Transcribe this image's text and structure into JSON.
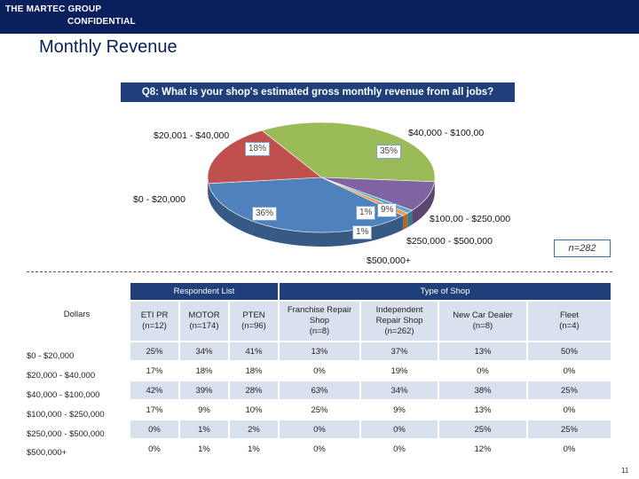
{
  "header": {
    "company": "THE MARTEC GROUP",
    "confidential": "CONFIDENTIAL"
  },
  "page_title": "Monthly Revenue",
  "question": "Q8: What is your shop's estimated gross monthly revenue from all jobs?",
  "sample_note": "n=282",
  "page_number": "11",
  "colors": {
    "header_bg": "#0b1f5c",
    "band_bg": "#1f3f7a",
    "light_row": "#d9e1ef",
    "slice_blue": "#4f81bd",
    "slice_red": "#c0504d",
    "slice_green": "#9bbb59",
    "slice_purple": "#8064a2",
    "slice_teal": "#4bacc6",
    "slice_orange": "#f79646"
  },
  "chart_data": {
    "type": "pie",
    "title": "Q8: What is your shop's estimated gross monthly revenue from all jobs?",
    "slices": [
      {
        "label": "$0 - $20,000",
        "value": 36,
        "pct_label": "36%",
        "color": "#4f81bd"
      },
      {
        "label": "$20,001 - $40,000",
        "value": 18,
        "pct_label": "18%",
        "color": "#c0504d"
      },
      {
        "label": "$40,000 - $100,00",
        "value": 35,
        "pct_label": "35%",
        "color": "#9bbb59"
      },
      {
        "label": "$100,00 - $250,000",
        "value": 9,
        "pct_label": "9%",
        "color": "#8064a2"
      },
      {
        "label": "$250,000 - $500,000",
        "value": 1,
        "pct_label": "1%",
        "color": "#4bacc6"
      },
      {
        "label": "$500,000+",
        "value": 1,
        "pct_label": "1%",
        "color": "#f79646"
      }
    ]
  },
  "table": {
    "row_header_label": "Dollars",
    "groups": [
      {
        "label": "Respondent List",
        "span": 3
      },
      {
        "label": "Type of Shop",
        "span": 4
      }
    ],
    "columns": [
      "ETI PR\n(n=12)",
      "MOTOR\n(n=174)",
      "PTEN\n(n=96)",
      "Franchise Repair\nShop\n(n=8)",
      "Independent\nRepair Shop\n(n=262)",
      "New Car Dealer\n(n=8)",
      "Fleet\n(n=4)"
    ],
    "rows": [
      {
        "label": "$0 - $20,000",
        "values": [
          "25%",
          "34%",
          "41%",
          "13%",
          "37%",
          "13%",
          "50%"
        ]
      },
      {
        "label": "$20,000 - $40,000",
        "values": [
          "17%",
          "18%",
          "18%",
          "0%",
          "19%",
          "0%",
          "0%"
        ]
      },
      {
        "label": "$40,000 - $100,000",
        "values": [
          "42%",
          "39%",
          "28%",
          "63%",
          "34%",
          "38%",
          "25%"
        ]
      },
      {
        "label": "$100,000 - $250,000",
        "values": [
          "17%",
          "9%",
          "10%",
          "25%",
          "9%",
          "13%",
          "0%"
        ]
      },
      {
        "label": "$250,000 - $500,000",
        "values": [
          "0%",
          "1%",
          "2%",
          "0%",
          "0%",
          "25%",
          "25%"
        ]
      },
      {
        "label": "$500,000+",
        "values": [
          "0%",
          "1%",
          "1%",
          "0%",
          "0%",
          "12%",
          "0%"
        ]
      }
    ]
  }
}
